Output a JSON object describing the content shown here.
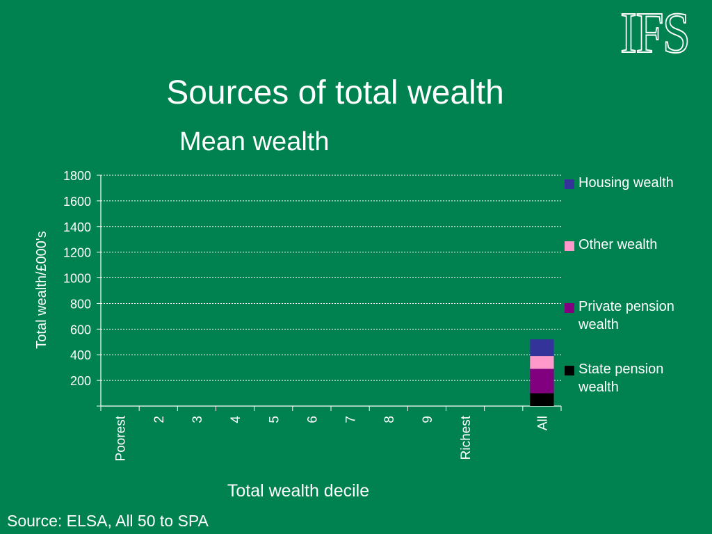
{
  "logo_text": "IFS",
  "title": "Sources of total wealth",
  "subtitle": "Mean wealth",
  "source": "Source: ELSA, All 50 to SPA",
  "colors": {
    "background": "#008250",
    "housing": "#33339A",
    "other": "#FF99CC",
    "private_pension": "#800080",
    "state_pension": "#000000"
  },
  "chart_data": {
    "type": "bar",
    "stacked": true,
    "xlabel": "Total wealth decile",
    "ylabel": "Total wealth/£000's",
    "ylim": [
      0,
      1800
    ],
    "yticks": [
      200,
      400,
      600,
      800,
      1000,
      1200,
      1400,
      1600,
      1800
    ],
    "grid": true,
    "legend_position": "right",
    "categories": [
      "Poorest",
      "2",
      "3",
      "4",
      "5",
      "6",
      "7",
      "8",
      "9",
      "Richest",
      "",
      "All"
    ],
    "series": [
      {
        "name": "State pension wealth",
        "color": "#000000",
        "values": [
          null,
          null,
          null,
          null,
          null,
          null,
          null,
          null,
          null,
          null,
          null,
          100
        ]
      },
      {
        "name": "Private pension wealth",
        "color": "#800080",
        "values": [
          null,
          null,
          null,
          null,
          null,
          null,
          null,
          null,
          null,
          null,
          null,
          190
        ]
      },
      {
        "name": "Other wealth",
        "color": "#FF99CC",
        "values": [
          null,
          null,
          null,
          null,
          null,
          null,
          null,
          null,
          null,
          null,
          null,
          100
        ]
      },
      {
        "name": "Housing wealth",
        "color": "#33339A",
        "values": [
          null,
          null,
          null,
          null,
          null,
          null,
          null,
          null,
          null,
          null,
          null,
          130
        ]
      }
    ],
    "legend_order": [
      "Housing wealth",
      "Other wealth",
      "Private pension wealth",
      "State pension wealth"
    ]
  }
}
